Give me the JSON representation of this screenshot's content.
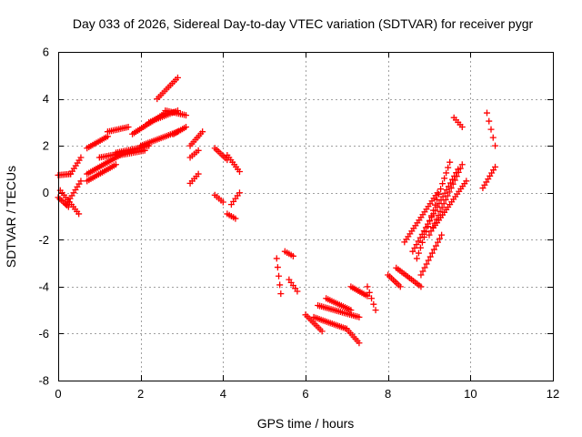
{
  "chart_data": {
    "type": "scatter",
    "title": "Day 033 of 2026, Sidereal Day-to-day VTEC variation (SDTVAR) for receiver pygr",
    "xlabel": "GPS time / hours",
    "ylabel": "SDTVAR / TECUs",
    "xlim": [
      0,
      12
    ],
    "ylim": [
      -8,
      6
    ],
    "x_ticks": [
      0,
      2,
      4,
      6,
      8,
      10,
      12
    ],
    "y_ticks": [
      -8,
      -6,
      -4,
      -2,
      0,
      2,
      4,
      6
    ],
    "grid": true,
    "marker": "+",
    "color": "#ff0000",
    "segments": [
      {
        "x0": 0.0,
        "x1": 0.3,
        "y0": 0.75,
        "y1": 0.8
      },
      {
        "x0": 0.3,
        "x1": 0.55,
        "y0": 0.8,
        "y1": 1.5
      },
      {
        "x0": 0.0,
        "x1": 0.25,
        "y0": -0.2,
        "y1": -0.6
      },
      {
        "x0": 0.05,
        "x1": 0.5,
        "y0": 0.1,
        "y1": -0.9
      },
      {
        "x0": 0.2,
        "x1": 0.55,
        "y0": -0.5,
        "y1": 0.5
      },
      {
        "x0": 0.7,
        "x1": 1.2,
        "y0": 1.9,
        "y1": 2.4
      },
      {
        "x0": 1.2,
        "x1": 1.7,
        "y0": 2.6,
        "y1": 2.8
      },
      {
        "x0": 0.7,
        "x1": 1.4,
        "y0": 0.5,
        "y1": 1.2
      },
      {
        "x0": 0.7,
        "x1": 1.5,
        "y0": 0.8,
        "y1": 1.6
      },
      {
        "x0": 1.0,
        "x1": 1.6,
        "y0": 1.5,
        "y1": 1.7
      },
      {
        "x0": 1.5,
        "x1": 2.1,
        "y0": 1.6,
        "y1": 1.8
      },
      {
        "x0": 1.4,
        "x1": 2.2,
        "y0": 1.7,
        "y1": 2.0
      },
      {
        "x0": 1.8,
        "x1": 2.6,
        "y0": 2.5,
        "y1": 3.4
      },
      {
        "x0": 2.2,
        "x1": 2.9,
        "y0": 3.0,
        "y1": 3.5
      },
      {
        "x0": 2.6,
        "x1": 3.1,
        "y0": 3.5,
        "y1": 3.3
      },
      {
        "x0": 2.4,
        "x1": 2.9,
        "y0": 4.0,
        "y1": 4.9
      },
      {
        "x0": 2.0,
        "x1": 2.9,
        "y0": 2.0,
        "y1": 2.6
      },
      {
        "x0": 2.8,
        "x1": 3.1,
        "y0": 2.5,
        "y1": 2.8
      },
      {
        "x0": 3.2,
        "x1": 3.5,
        "y0": 2.0,
        "y1": 2.6
      },
      {
        "x0": 3.2,
        "x1": 3.4,
        "y0": 0.4,
        "y1": 0.8
      },
      {
        "x0": 3.2,
        "x1": 3.4,
        "y0": 1.5,
        "y1": 1.8
      },
      {
        "x0": 3.8,
        "x1": 4.1,
        "y0": 1.9,
        "y1": 1.4
      },
      {
        "x0": 3.8,
        "x1": 4.0,
        "y0": -0.1,
        "y1": -0.4
      },
      {
        "x0": 4.1,
        "x1": 4.4,
        "y0": 1.6,
        "y1": 0.9
      },
      {
        "x0": 4.2,
        "x1": 4.4,
        "y0": -0.5,
        "y1": 0.0
      },
      {
        "x0": 4.1,
        "x1": 4.3,
        "y0": -0.9,
        "y1": -1.1
      },
      {
        "x0": 5.3,
        "x1": 5.4,
        "y0": -2.8,
        "y1": -4.3
      },
      {
        "x0": 5.5,
        "x1": 5.7,
        "y0": -2.5,
        "y1": -2.7
      },
      {
        "x0": 5.6,
        "x1": 5.8,
        "y0": -3.7,
        "y1": -4.2
      },
      {
        "x0": 6.0,
        "x1": 6.4,
        "y0": -5.2,
        "y1": -5.9
      },
      {
        "x0": 6.2,
        "x1": 7.0,
        "y0": -5.3,
        "y1": -5.8
      },
      {
        "x0": 6.3,
        "x1": 7.3,
        "y0": -4.8,
        "y1": -5.3
      },
      {
        "x0": 7.0,
        "x1": 7.3,
        "y0": -5.8,
        "y1": -6.4
      },
      {
        "x0": 6.5,
        "x1": 7.1,
        "y0": -4.5,
        "y1": -5.0
      },
      {
        "x0": 7.1,
        "x1": 7.5,
        "y0": -4.0,
        "y1": -4.4
      },
      {
        "x0": 7.5,
        "x1": 7.7,
        "y0": -4.0,
        "y1": -5.0
      },
      {
        "x0": 8.0,
        "x1": 8.3,
        "y0": -3.5,
        "y1": -4.0
      },
      {
        "x0": 8.2,
        "x1": 8.8,
        "y0": -3.2,
        "y1": -4.0
      },
      {
        "x0": 8.4,
        "x1": 9.2,
        "y0": -2.1,
        "y1": 0.0
      },
      {
        "x0": 8.6,
        "x1": 9.7,
        "y0": -2.5,
        "y1": 1.0
      },
      {
        "x0": 8.7,
        "x1": 9.5,
        "y0": -2.8,
        "y1": 1.3
      },
      {
        "x0": 9.0,
        "x1": 9.8,
        "y0": -1.8,
        "y1": 1.2
      },
      {
        "x0": 9.1,
        "x1": 9.9,
        "y0": -1.5,
        "y1": 0.5
      },
      {
        "x0": 8.8,
        "x1": 9.3,
        "y0": -3.5,
        "y1": -1.8
      },
      {
        "x0": 9.6,
        "x1": 9.8,
        "y0": 3.2,
        "y1": 2.8
      },
      {
        "x0": 10.4,
        "x1": 10.6,
        "y0": 3.4,
        "y1": 2.0
      },
      {
        "x0": 10.3,
        "x1": 10.6,
        "y0": 0.2,
        "y1": 1.1
      }
    ]
  }
}
